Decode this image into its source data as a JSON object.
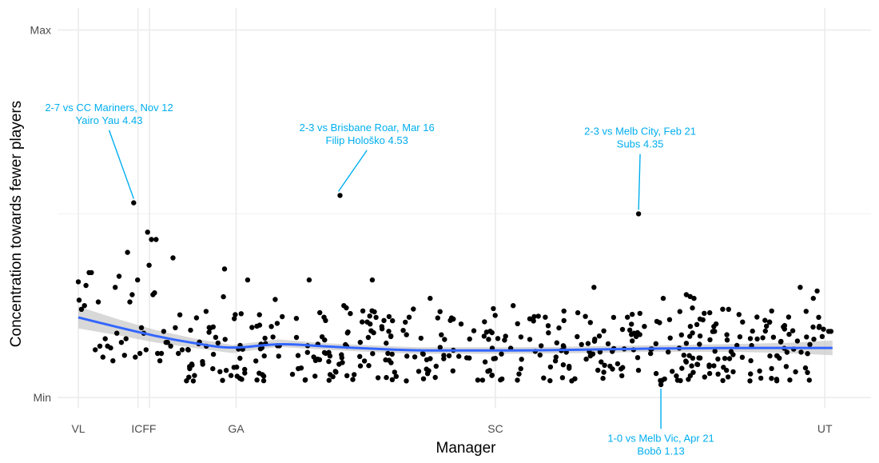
{
  "chart_data": {
    "type": "scatter",
    "xlabel": "Manager",
    "ylabel": "Concentration towards fewer players",
    "x_ticks": [
      {
        "label": "VL",
        "x": 0
      },
      {
        "label": "ICFF",
        "x": 77.5
      },
      {
        "label": "ICFF",
        "x": 92.5
      },
      {
        "label": "GA",
        "x": 205
      },
      {
        "label": "SC",
        "x": 542
      },
      {
        "label": "UT",
        "x": 970
      }
    ],
    "x_tick_labels": [
      {
        "label": "VL",
        "x": 0
      },
      {
        "label": "ICFF",
        "x": 85
      },
      {
        "label": "GA",
        "x": 205
      },
      {
        "label": "SC",
        "x": 542
      },
      {
        "label": "UT",
        "x": 970
      }
    ],
    "y_ticks": [
      {
        "label": "Min",
        "y": 0
      },
      {
        "label": "Max",
        "y": 1
      }
    ],
    "xlim": [
      -27,
      1030
    ],
    "ylim": [
      -0.028,
      1.06
    ],
    "grid": true,
    "accent_color": "#00AEEF",
    "smooth_color": "#3366FF",
    "ribbon_color": "#C8C8C8",
    "smooth": {
      "x": [
        0,
        50,
        100,
        150,
        200,
        260,
        320,
        380,
        440,
        500,
        560,
        620,
        680,
        740,
        800,
        860,
        920,
        980
      ],
      "y": [
        0.218,
        0.192,
        0.167,
        0.148,
        0.132,
        0.148,
        0.139,
        0.133,
        0.128,
        0.128,
        0.128,
        0.129,
        0.131,
        0.133,
        0.134,
        0.135,
        0.135,
        0.135
      ],
      "ribbon_halfwidth": [
        0.03,
        0.022,
        0.017,
        0.013,
        0.011,
        0.01,
        0.009,
        0.009,
        0.009,
        0.009,
        0.009,
        0.009,
        0.009,
        0.009,
        0.01,
        0.011,
        0.014,
        0.02
      ]
    },
    "annotations": [
      {
        "lines": [
          "2-7 vs CC Mariners, Nov 12",
          "Yairo Yau 4.43"
        ],
        "point": [
          72,
          0.53
        ],
        "label_at": [
          40,
          0.745
        ]
      },
      {
        "lines": [
          "2-3 vs Brisbane Roar, Mar 16",
          "Filip Hološko 4.53"
        ],
        "point": [
          338,
          0.55
        ],
        "label_at": [
          375,
          0.69
        ]
      },
      {
        "lines": [
          "2-3 vs Melb City, Feb 21",
          "Subs 4.35"
        ],
        "point": [
          728,
          0.5
        ],
        "label_at": [
          730,
          0.68
        ]
      },
      {
        "lines": [
          "1-0 vs Melb Vic, Apr 21",
          "Bobô 1.13"
        ],
        "point": [
          757,
          0.035
        ],
        "label_at": [
          757,
          -0.12
        ]
      }
    ]
  }
}
